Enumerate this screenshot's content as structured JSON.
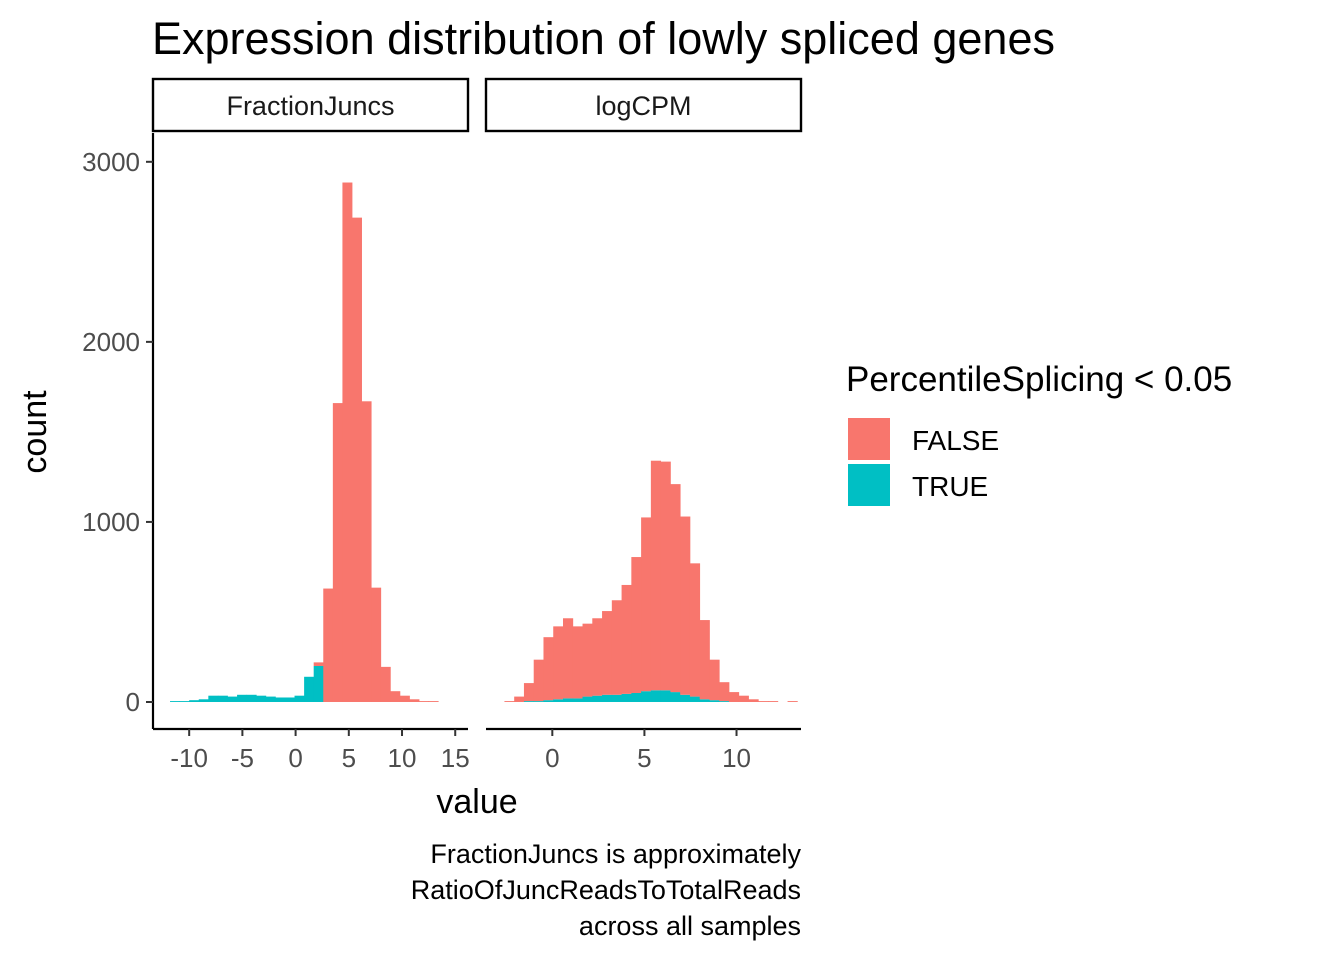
{
  "chart_data": {
    "type": "histogram",
    "title": "Expression distribution of lowly spliced genes",
    "xlabel": "value",
    "ylabel": "count",
    "caption": [
      "FractionJuncs is approximately",
      "RatioOfJuncReadsToTotalReads",
      "across all samples"
    ],
    "legend": {
      "title": "PercentileSplicing < 0.05",
      "position": "right",
      "entries": [
        {
          "label": "FALSE",
          "color": "#F8766D"
        },
        {
          "label": "TRUE",
          "color": "#00BFC4"
        }
      ]
    },
    "y_axis": {
      "ticks": [
        0,
        1000,
        2000,
        3000
      ],
      "tick_labels": [
        "0",
        "1000",
        "2000",
        "3000"
      ],
      "ylim": [
        -150,
        3160
      ]
    },
    "stacked": true,
    "grid": false,
    "panels": [
      {
        "strip_label": "FractionJuncs",
        "x_ticks": [
          -10,
          -5,
          0,
          5,
          10,
          15
        ],
        "x_tick_labels": [
          "-10",
          "-5",
          "0",
          "5",
          "10",
          "15"
        ],
        "xlim": [
          -13.4,
          16.2
        ],
        "bin_width": 0.9,
        "bin_start": -11.8,
        "series": [
          {
            "name": "FALSE",
            "counts": [
              0,
              0,
              0,
              0,
              0,
              0,
              0,
              0,
              0,
              0,
              0,
              0,
              0,
              0,
              0,
              20,
              630,
              1660,
              2885,
              2690,
              1670,
              635,
              195,
              60,
              35,
              15,
              5,
              5,
              0,
              0,
              0,
              0,
              0,
              0,
              0,
              0,
              0,
              0
            ]
          },
          {
            "name": "TRUE",
            "counts": [
              5,
              5,
              10,
              15,
              35,
              35,
              30,
              40,
              40,
              35,
              30,
              25,
              25,
              35,
              140,
              200,
              0,
              0,
              0,
              0,
              0,
              0,
              0,
              0,
              0,
              0,
              0,
              0,
              0,
              0,
              0,
              0,
              0,
              0,
              0,
              0,
              0,
              0
            ]
          }
        ]
      },
      {
        "strip_label": "logCPM",
        "x_ticks": [
          0,
          5,
          10
        ],
        "x_tick_labels": [
          "0",
          "5",
          "10"
        ],
        "xlim": [
          -3.6,
          13.5
        ],
        "bin_width": 0.53,
        "bin_start": -2.6,
        "series": [
          {
            "name": "FALSE",
            "counts": [
              5,
              30,
              100,
              230,
              350,
              405,
              445,
              400,
              405,
              430,
              465,
              525,
              605,
              755,
              965,
              1275,
              1270,
              1155,
              990,
              740,
              440,
              225,
              105,
              55,
              35,
              15,
              5,
              5,
              0,
              5
            ]
          },
          {
            "name": "TRUE",
            "counts": [
              0,
              0,
              5,
              5,
              10,
              15,
              20,
              20,
              30,
              35,
              40,
              40,
              45,
              50,
              60,
              65,
              65,
              55,
              40,
              30,
              15,
              10,
              5,
              0,
              0,
              0,
              0,
              0,
              0,
              0
            ]
          }
        ]
      }
    ]
  }
}
